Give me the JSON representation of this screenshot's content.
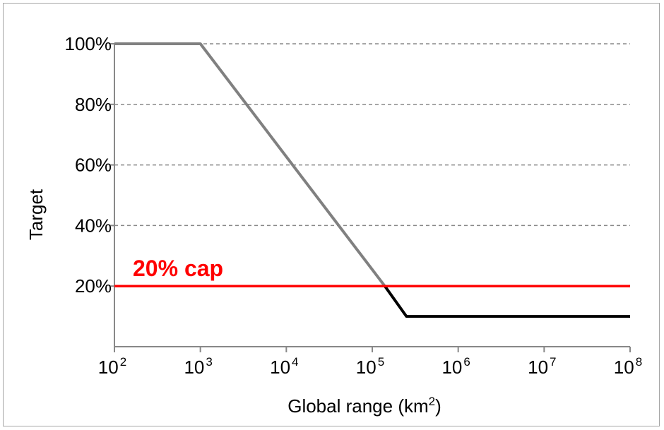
{
  "chart_data": {
    "type": "line",
    "xlabel_base": "Global range (km",
    "xlabel_sup": "2",
    "xlabel_tail": ")",
    "ylabel": "Target",
    "x_scale": "log10",
    "xlim": [
      100,
      100000000
    ],
    "ylim": [
      0,
      100
    ],
    "x_ticks": [
      {
        "value": 100,
        "base": "10",
        "exp": "2"
      },
      {
        "value": 1000,
        "base": "10",
        "exp": "3"
      },
      {
        "value": 10000,
        "base": "10",
        "exp": "4"
      },
      {
        "value": 100000,
        "base": "10",
        "exp": "5"
      },
      {
        "value": 1000000,
        "base": "10",
        "exp": "6"
      },
      {
        "value": 10000000,
        "base": "10",
        "exp": "7"
      },
      {
        "value": 100000000,
        "base": "10",
        "exp": "8"
      }
    ],
    "y_ticks": [
      {
        "value": 100,
        "label": "100%"
      },
      {
        "value": 80,
        "label": "80%"
      },
      {
        "value": 60,
        "label": "60%"
      },
      {
        "value": 40,
        "label": "40%"
      },
      {
        "value": 20,
        "label": "20%"
      }
    ],
    "grid": "horizontal dashed",
    "series": [
      {
        "color": "#808080",
        "points": [
          [
            100,
            100
          ],
          [
            1000,
            100
          ],
          [
            140000,
            20
          ]
        ]
      },
      {
        "color": "#000000",
        "points": [
          [
            140000,
            20
          ],
          [
            250000,
            10
          ],
          [
            100000000,
            10
          ]
        ]
      }
    ],
    "cap_line": {
      "y": 20,
      "color": "#ff0000",
      "label": "20% cap"
    }
  }
}
